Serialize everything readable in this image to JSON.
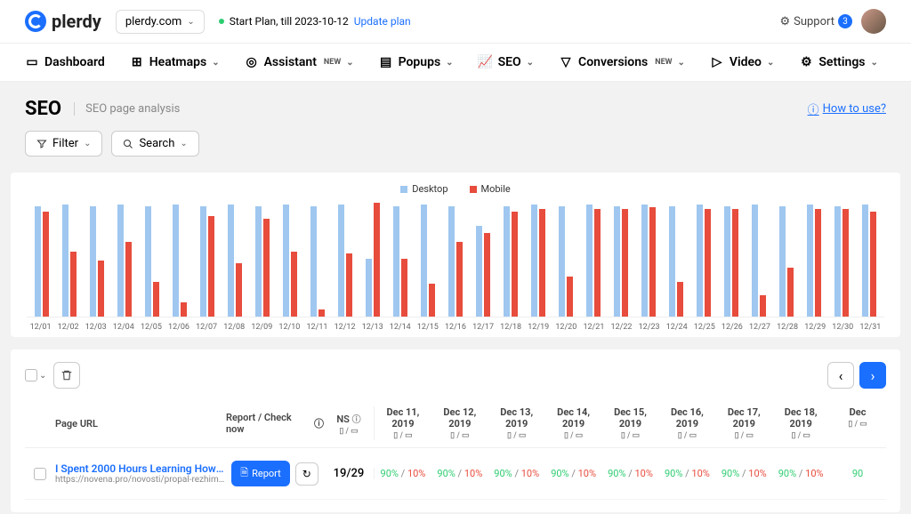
{
  "brand": "plerdy",
  "site_selector": "plerdy.com",
  "plan": {
    "text": "Start Plan, till 2023-10-12",
    "link": "Update plan"
  },
  "support": {
    "label": "Support",
    "count": "3"
  },
  "nav": [
    {
      "label": "Dashboard",
      "new": false,
      "chev": false
    },
    {
      "label": "Heatmaps",
      "new": false,
      "chev": true
    },
    {
      "label": "Assistant",
      "new": true,
      "chev": true
    },
    {
      "label": "Popups",
      "new": false,
      "chev": true
    },
    {
      "label": "SEO",
      "new": false,
      "chev": true
    },
    {
      "label": "Conversions",
      "new": true,
      "chev": true
    },
    {
      "label": "Video",
      "new": false,
      "chev": true
    },
    {
      "label": "Settings",
      "new": false,
      "chev": true
    }
  ],
  "page": {
    "title": "SEO",
    "subtitle": "SEO page analysis",
    "how_to": "How to use?"
  },
  "filters": {
    "filter": "Filter",
    "search": "Search"
  },
  "chart": {
    "type": "bar",
    "legend": [
      {
        "label": "Desktop",
        "color": "#9fc7f0"
      },
      {
        "label": "Mobile",
        "color": "#e74c3c"
      }
    ],
    "y_max": 100,
    "background_color": "#ffffff",
    "day_label_prefix": "12/",
    "days": [
      {
        "d": "12/01",
        "desktop": 95,
        "mobile": 90
      },
      {
        "d": "12/02",
        "desktop": 96,
        "mobile": 56
      },
      {
        "d": "12/03",
        "desktop": 95,
        "mobile": 48
      },
      {
        "d": "12/04",
        "desktop": 96,
        "mobile": 64
      },
      {
        "d": "12/05",
        "desktop": 95,
        "mobile": 30
      },
      {
        "d": "12/06",
        "desktop": 96,
        "mobile": 12
      },
      {
        "d": "12/07",
        "desktop": 95,
        "mobile": 86
      },
      {
        "d": "12/08",
        "desktop": 96,
        "mobile": 46
      },
      {
        "d": "12/09",
        "desktop": 95,
        "mobile": 84
      },
      {
        "d": "12/10",
        "desktop": 96,
        "mobile": 56
      },
      {
        "d": "12/11",
        "desktop": 95,
        "mobile": 6
      },
      {
        "d": "12/12",
        "desktop": 96,
        "mobile": 54
      },
      {
        "d": "12/13",
        "desktop": 50,
        "mobile": 98
      },
      {
        "d": "12/14",
        "desktop": 95,
        "mobile": 50
      },
      {
        "d": "12/15",
        "desktop": 96,
        "mobile": 28
      },
      {
        "d": "12/16",
        "desktop": 95,
        "mobile": 64
      },
      {
        "d": "12/17",
        "desktop": 78,
        "mobile": 72
      },
      {
        "d": "12/18",
        "desktop": 95,
        "mobile": 90
      },
      {
        "d": "12/19",
        "desktop": 96,
        "mobile": 92
      },
      {
        "d": "12/20",
        "desktop": 95,
        "mobile": 34
      },
      {
        "d": "12/21",
        "desktop": 96,
        "mobile": 92
      },
      {
        "d": "12/22",
        "desktop": 95,
        "mobile": 92
      },
      {
        "d": "12/23",
        "desktop": 96,
        "mobile": 94
      },
      {
        "d": "12/24",
        "desktop": 95,
        "mobile": 30
      },
      {
        "d": "12/25",
        "desktop": 96,
        "mobile": 92
      },
      {
        "d": "12/26",
        "desktop": 95,
        "mobile": 92
      },
      {
        "d": "12/27",
        "desktop": 96,
        "mobile": 18
      },
      {
        "d": "12/28",
        "desktop": 95,
        "mobile": 42
      },
      {
        "d": "12/29",
        "desktop": 96,
        "mobile": 92
      },
      {
        "d": "12/30",
        "desktop": 95,
        "mobile": 92
      },
      {
        "d": "12/31",
        "desktop": 96,
        "mobile": 90
      }
    ]
  },
  "table": {
    "headers": {
      "url": "Page URL",
      "report": "Report / Check now",
      "ns": "NS",
      "dates": [
        "Dec 11, 2019",
        "Dec 12, 2019",
        "Dec 13, 2019",
        "Dec 14, 2019",
        "Dec 15, 2019",
        "Dec 16, 2019",
        "Dec 17, 2019",
        "Dec 18, 2019",
        "Dec"
      ]
    },
    "device_icons_hint": "mobile/desktop",
    "report_btn": "Report",
    "rows": [
      {
        "title": "I Spent 2000 Hours Learning How To…",
        "url": "https://novena.pro/novosti/propal-rezhim-…",
        "ns": "19/29",
        "cells": [
          {
            "g": "90%",
            "r": "10%"
          },
          {
            "g": "90%",
            "r": "10%"
          },
          {
            "g": "90%",
            "r": "10%"
          },
          {
            "g": "90%",
            "r": "10%"
          },
          {
            "g": "90%",
            "r": "10%"
          },
          {
            "g": "90%",
            "r": "10%"
          },
          {
            "g": "90%",
            "r": "10%"
          },
          {
            "g": "90%",
            "r": "10%"
          },
          {
            "g": "90",
            "r": ""
          }
        ]
      }
    ]
  },
  "colors": {
    "accent": "#1b6fff",
    "desktop": "#9fc7f0",
    "mobile": "#e74c3c",
    "green": "#2ecc71"
  }
}
